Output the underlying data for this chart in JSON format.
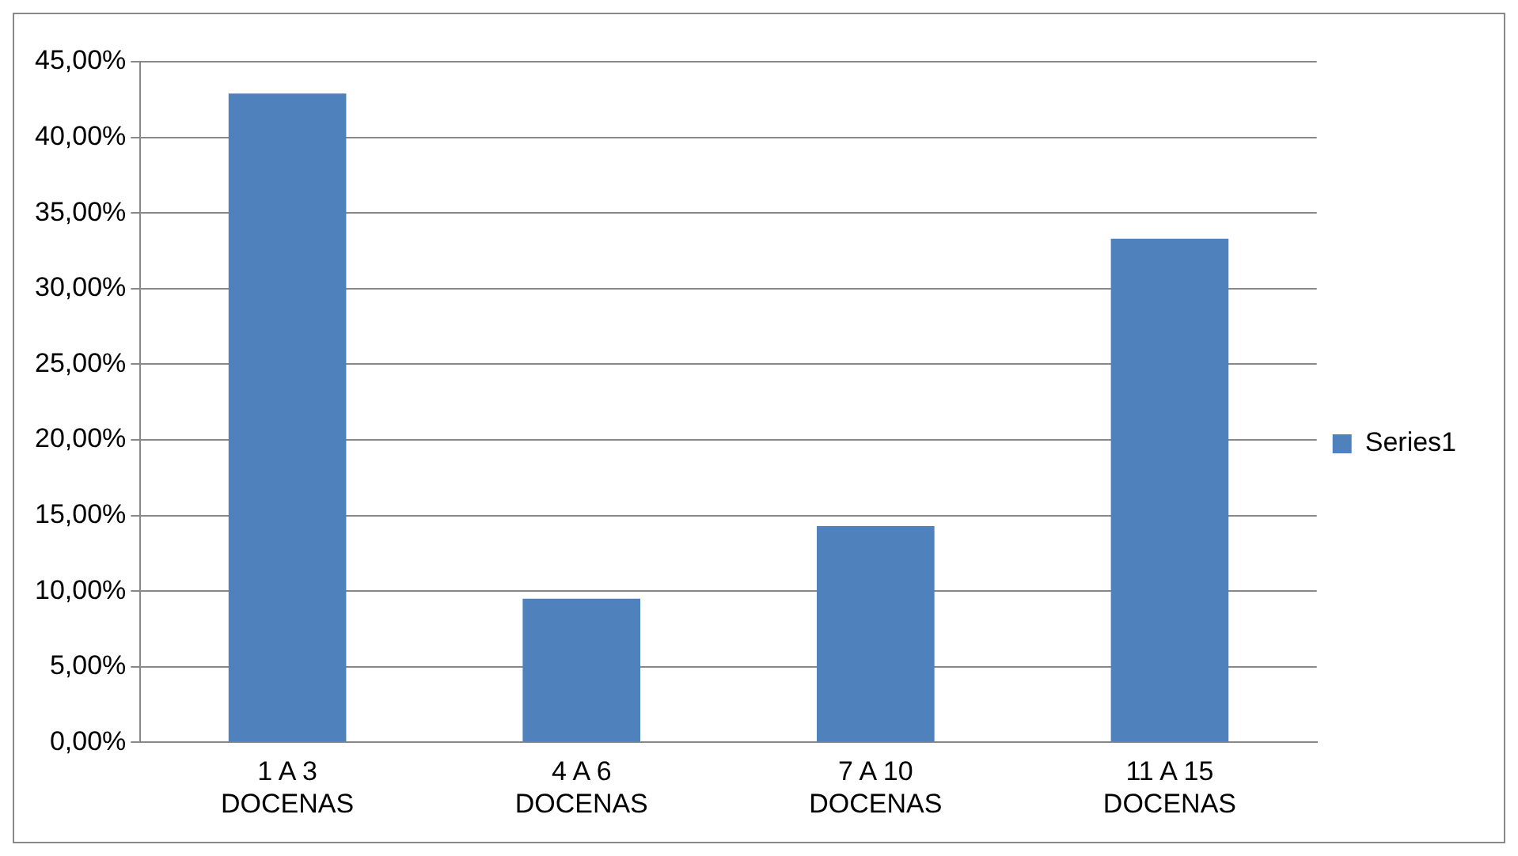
{
  "chart_data": {
    "type": "bar",
    "categories": [
      "1 A 3 DOCENAS",
      "4 A 6 DOCENAS",
      "7 A 10 DOCENAS",
      "11 A 15 DOCENAS"
    ],
    "series": [
      {
        "name": "Series1",
        "color": "#4f81bd",
        "values": [
          42.9,
          9.5,
          14.3,
          33.3
        ]
      }
    ],
    "ylim": [
      0,
      45
    ],
    "yticks": [
      {
        "value": 0,
        "label": "0,00%"
      },
      {
        "value": 5,
        "label": "5,00%"
      },
      {
        "value": 10,
        "label": "10,00%"
      },
      {
        "value": 15,
        "label": "15,00%"
      },
      {
        "value": 20,
        "label": "20,00%"
      },
      {
        "value": 25,
        "label": "25,00%"
      },
      {
        "value": 30,
        "label": "30,00%"
      },
      {
        "value": 35,
        "label": "35,00%"
      },
      {
        "value": 40,
        "label": "40,00%"
      },
      {
        "value": 45,
        "label": "45,00%"
      }
    ],
    "grid": "y",
    "legend": "right"
  }
}
